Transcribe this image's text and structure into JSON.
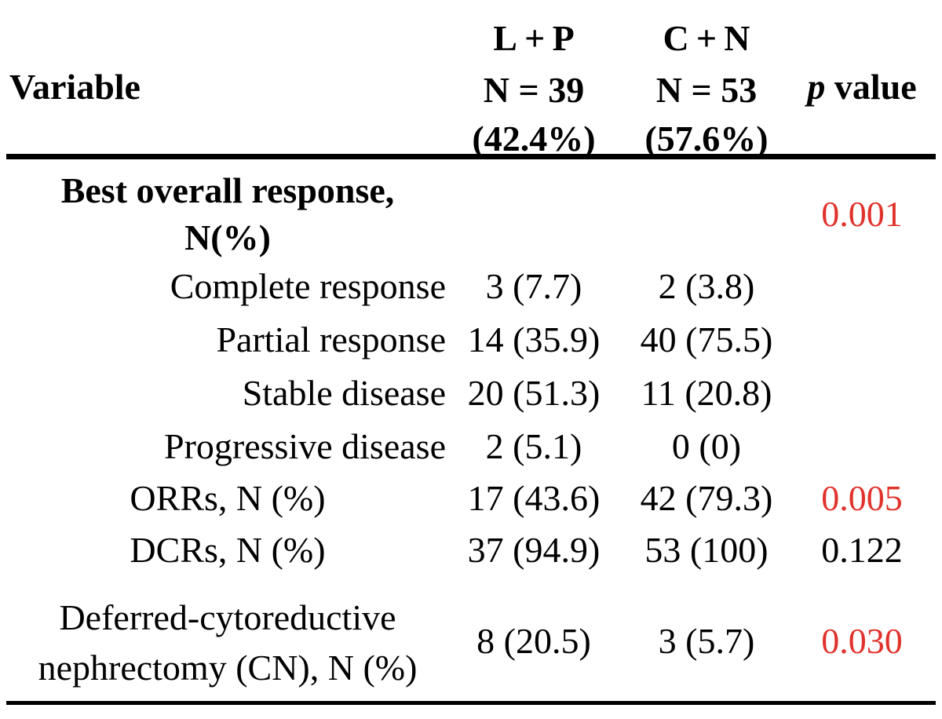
{
  "header": {
    "variable": "Variable",
    "col1": {
      "line1": "L + P",
      "line2": "N = 39",
      "line3": "(42.4%)"
    },
    "col2": {
      "line1": "C + N",
      "line2": "N = 53",
      "line3": "(57.6%)"
    },
    "pvalue": {
      "italic": "p",
      "rest": " value"
    }
  },
  "rows": {
    "best": {
      "label1": "Best overall response,",
      "label2": "N(%)",
      "p": "0.001"
    },
    "cr": {
      "label": "Complete response",
      "v1": "3 (7.7)",
      "v2": "2 (3.8)"
    },
    "pr": {
      "label": "Partial response",
      "v1": "14 (35.9)",
      "v2": "40 (75.5)"
    },
    "sd": {
      "label": "Stable disease",
      "v1": "20 (51.3)",
      "v2": "11 (20.8)"
    },
    "pd": {
      "label": "Progressive disease",
      "v1": "2 (5.1)",
      "v2": "0 (0)"
    },
    "orr": {
      "label": "ORRs, N (%)",
      "v1": "17 (43.6)",
      "v2": "42 (79.3)",
      "p": "0.005"
    },
    "dcr": {
      "label": "DCRs, N (%)",
      "v1": "37 (94.9)",
      "v2": "53 (100)",
      "p": "0.122"
    },
    "cn": {
      "label1": "Deferred-cytoreductive",
      "label2": "nephrectomy (CN), N (%)",
      "v1": "8 (20.5)",
      "v2": "3 (5.7)",
      "p": "0.030"
    }
  },
  "colors": {
    "significant": "#e0322b",
    "text": "#000000"
  }
}
